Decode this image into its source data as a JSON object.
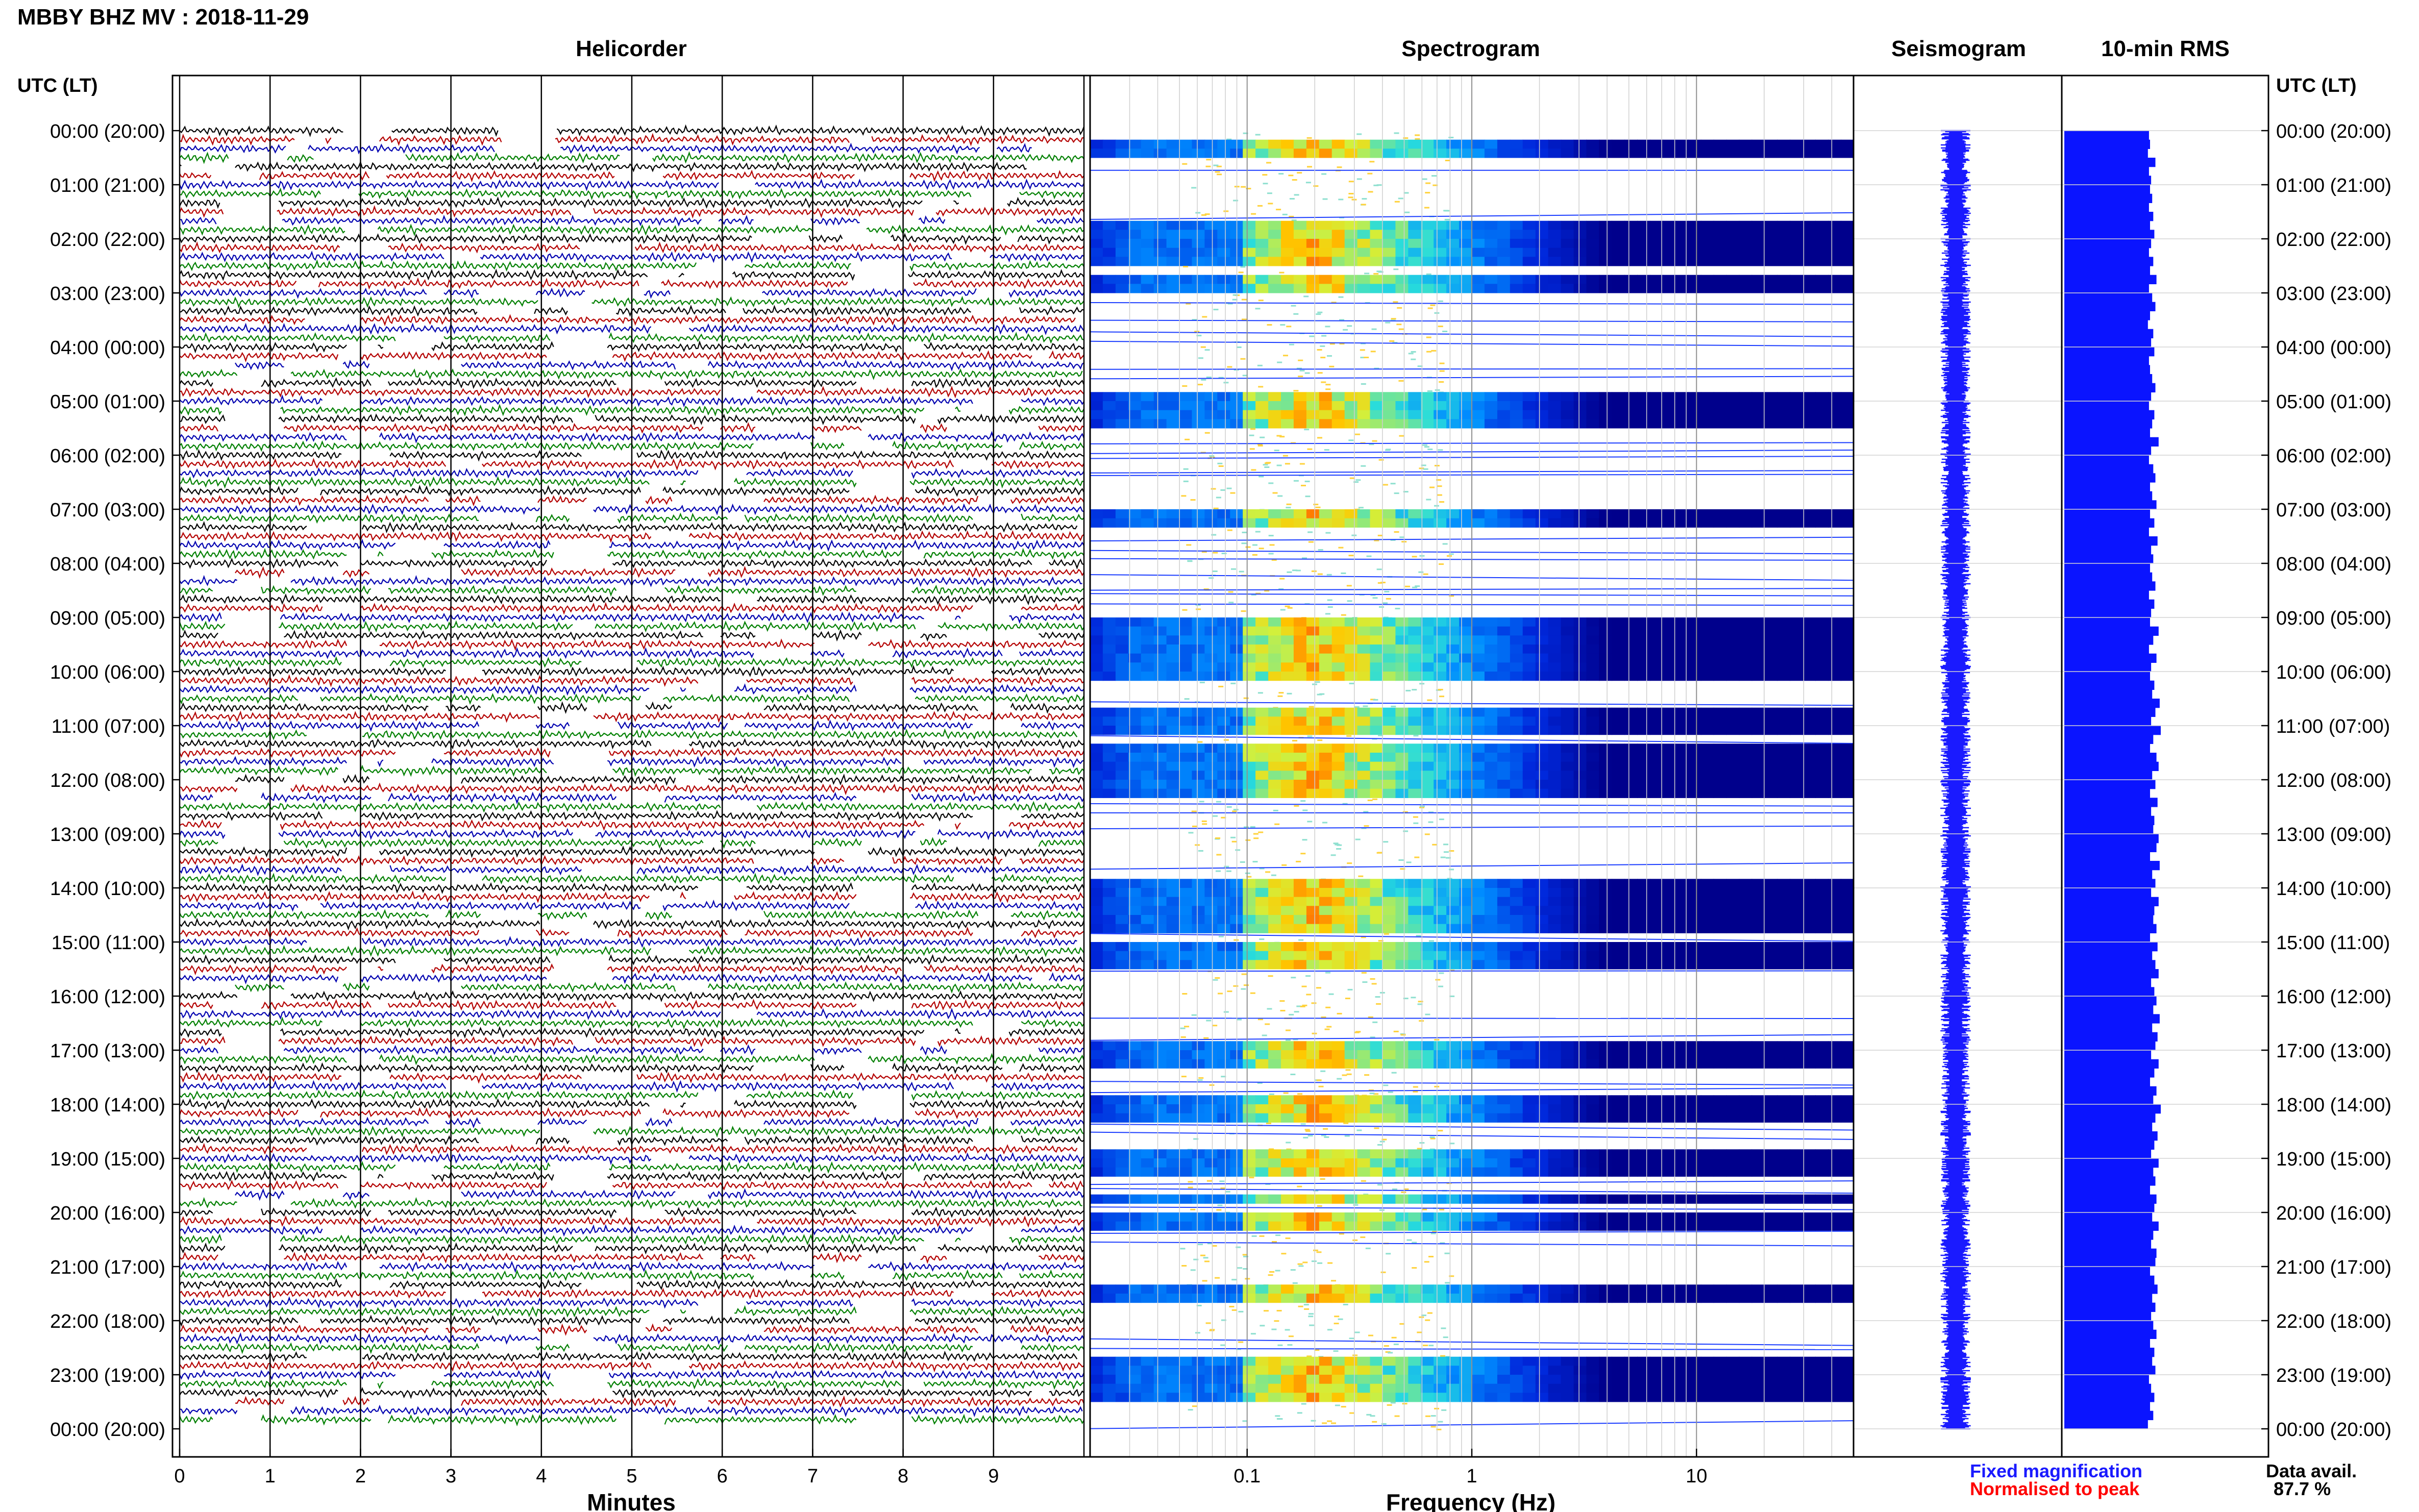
{
  "title": "MBBY BHZ MV : 2018-11-29",
  "colors": {
    "black": "#000000",
    "red": "#b40000",
    "green": "#008000",
    "blue": "#0000b0",
    "rms_fill": "#0a14ff",
    "fixed": "#1a1aff",
    "normalised": "#ff0000"
  },
  "panels": {
    "helicorder": "Helicorder",
    "spectrogram": "Spectrogram",
    "seismogram": "Seismogram",
    "rms": "10-min RMS"
  },
  "left_axis_title": "UTC (LT)",
  "right_axis_title": "UTC (LT)",
  "time_labels": [
    "00:00 (20:00)",
    "01:00 (21:00)",
    "02:00 (22:00)",
    "03:00 (23:00)",
    "04:00 (00:00)",
    "05:00 (01:00)",
    "06:00 (02:00)",
    "07:00 (03:00)",
    "08:00 (04:00)",
    "09:00 (05:00)",
    "10:00 (06:00)",
    "11:00 (07:00)",
    "12:00 (08:00)",
    "13:00 (09:00)",
    "14:00 (10:00)",
    "15:00 (11:00)",
    "16:00 (12:00)",
    "17:00 (13:00)",
    "18:00 (14:00)",
    "19:00 (15:00)",
    "20:00 (16:00)",
    "21:00 (17:00)",
    "22:00 (18:00)",
    "23:00 (19:00)",
    "00:00 (20:00)"
  ],
  "helicorder_x_label": "Minutes",
  "helicorder_x_ticks": [
    "0",
    "1",
    "2",
    "3",
    "4",
    "5",
    "6",
    "7",
    "8",
    "9"
  ],
  "spectrogram_x_label": "Frequency (Hz)",
  "spectrogram_x_ticks": [
    "0.1",
    "1",
    "10"
  ],
  "legend": {
    "fixed": "Fixed magnification",
    "normalised": "Normalised to peak"
  },
  "data_avail_label": "Data avail.",
  "data_avail_value": "87.7 %",
  "chart_data": [
    {
      "type": "line",
      "title": "Helicorder",
      "xlabel": "Minutes",
      "x_ticks": [
        0,
        1,
        2,
        3,
        4,
        5,
        6,
        7,
        8,
        9
      ],
      "xlim": [
        0,
        10
      ],
      "rows_per_hour": 6,
      "trace_color_cycle": [
        "black",
        "red",
        "blue",
        "green"
      ]
    },
    {
      "type": "heatmap",
      "title": "Spectrogram",
      "xlabel": "Frequency (Hz)",
      "x_scale": "log",
      "x_ticks": [
        0.1,
        1,
        10
      ],
      "xlim": [
        0.02,
        50
      ],
      "peak_frequency_hz": 0.2,
      "strong_bands_utc_hours": [
        [
          0.1,
          0.5
        ],
        [
          1.6,
          2.4
        ],
        [
          2.6,
          3.0
        ],
        [
          4.7,
          5.4
        ],
        [
          7.0,
          7.2
        ],
        [
          8.4,
          8.5
        ],
        [
          8.9,
          10.1
        ],
        [
          10.6,
          11.1
        ],
        [
          11.3,
          12.3
        ],
        [
          13.8,
          14.2
        ],
        [
          14.3,
          14.8
        ],
        [
          14.9,
          15.5
        ],
        [
          16.8,
          17.3
        ],
        [
          17.7,
          18.2
        ],
        [
          18.8,
          19.2
        ],
        [
          19.6,
          19.7
        ],
        [
          19.9,
          20.3
        ],
        [
          21.3,
          21.6
        ],
        [
          22.6,
          23.4
        ]
      ]
    },
    {
      "type": "line",
      "title": "Seismogram",
      "note": "Fixed magnification compressed 24-hour trace"
    },
    {
      "type": "bar",
      "title": "10-min RMS",
      "orientation": "horizontal",
      "rms_relative": [
        0.79,
        0.8,
        0.78,
        0.85,
        0.79,
        0.81,
        0.8,
        0.82,
        0.79,
        0.83,
        0.8,
        0.84,
        0.81,
        0.79,
        0.83,
        0.8,
        0.86,
        0.79,
        0.82,
        0.85,
        0.8,
        0.78,
        0.83,
        0.81,
        0.84,
        0.79,
        0.8,
        0.82,
        0.85,
        0.81,
        0.79,
        0.84,
        0.82,
        0.8,
        0.88,
        0.81,
        0.79,
        0.83,
        0.85,
        0.8,
        0.82,
        0.86,
        0.8,
        0.84,
        0.79,
        0.87,
        0.81,
        0.83,
        0.8,
        0.82,
        0.85,
        0.79,
        0.84,
        0.81,
        0.8,
        0.88,
        0.83,
        0.79,
        0.86,
        0.81,
        0.8,
        0.84,
        0.82,
        0.89,
        0.85,
        0.81,
        0.9,
        0.83,
        0.8,
        0.86,
        0.88,
        0.82,
        0.85,
        0.8,
        0.87,
        0.81,
        0.84,
        0.83,
        0.88,
        0.86,
        0.8,
        0.89,
        0.82,
        0.85,
        0.81,
        0.88,
        0.84,
        0.83,
        0.86,
        0.8,
        0.87,
        0.82,
        0.85,
        0.88,
        0.81,
        0.84,
        0.86,
        0.83,
        0.89,
        0.82,
        0.87,
        0.85,
        0.81,
        0.88,
        0.84,
        0.8,
        0.86,
        0.83,
        0.9,
        0.85,
        0.82,
        0.87,
        0.84,
        0.81,
        0.88,
        0.83,
        0.85,
        0.8,
        0.86,
        0.84,
        0.82,
        0.88,
        0.83,
        0.81,
        0.86,
        0.85,
        0.8,
        0.84,
        0.87,
        0.82,
        0.85,
        0.81,
        0.83,
        0.86,
        0.8,
        0.84,
        0.82,
        0.85,
        0.79,
        0.81,
        0.84,
        0.8,
        0.83,
        0.78
      ]
    }
  ]
}
